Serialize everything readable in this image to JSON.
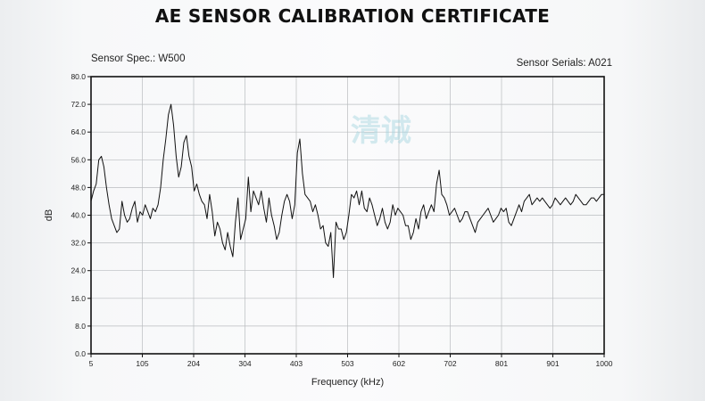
{
  "title": "AE SENSOR CALIBRATION CERTIFICATE",
  "sensor_spec": "Sensor Spec.: W500",
  "sensor_serials": "Sensor Serials: A021",
  "watermark": "清诚",
  "chart_data": {
    "type": "line",
    "title": "",
    "xlabel": "Frequency (kHz)",
    "ylabel": "dB",
    "xlim": [
      5,
      1000
    ],
    "ylim": [
      0,
      80
    ],
    "x_ticks": [
      "5",
      "105",
      "204",
      "304",
      "403",
      "503",
      "602",
      "702",
      "801",
      "901",
      "1000"
    ],
    "y_ticks": [
      "0.0",
      "8.0",
      "16.0",
      "24.0",
      "32.0",
      "40.0",
      "48.0",
      "56.0",
      "64.0",
      "72.0",
      "80.0"
    ],
    "grid": true,
    "line_color": "#111111",
    "series": [
      {
        "name": "",
        "x": [
          5,
          10,
          15,
          20,
          25,
          30,
          35,
          40,
          45,
          50,
          55,
          60,
          65,
          70,
          75,
          80,
          85,
          90,
          95,
          100,
          105,
          110,
          115,
          120,
          125,
          130,
          135,
          140,
          145,
          150,
          155,
          160,
          165,
          170,
          175,
          180,
          185,
          190,
          195,
          200,
          205,
          210,
          215,
          220,
          225,
          230,
          235,
          240,
          245,
          250,
          255,
          260,
          265,
          270,
          275,
          280,
          285,
          290,
          295,
          300,
          305,
          310,
          315,
          320,
          325,
          330,
          335,
          340,
          345,
          350,
          355,
          360,
          365,
          370,
          375,
          380,
          385,
          390,
          395,
          400,
          405,
          410,
          415,
          420,
          425,
          430,
          435,
          440,
          445,
          450,
          455,
          460,
          465,
          470,
          475,
          480,
          485,
          490,
          495,
          500,
          505,
          510,
          515,
          520,
          525,
          530,
          535,
          540,
          545,
          550,
          555,
          560,
          565,
          570,
          575,
          580,
          585,
          590,
          595,
          600,
          605,
          610,
          615,
          620,
          625,
          630,
          635,
          640,
          645,
          650,
          655,
          660,
          665,
          670,
          675,
          680,
          685,
          690,
          695,
          700,
          705,
          710,
          715,
          720,
          725,
          730,
          735,
          740,
          745,
          750,
          755,
          760,
          765,
          770,
          775,
          780,
          785,
          790,
          795,
          800,
          805,
          810,
          815,
          820,
          825,
          830,
          835,
          840,
          845,
          850,
          855,
          860,
          865,
          870,
          875,
          880,
          885,
          890,
          895,
          900,
          905,
          910,
          915,
          920,
          925,
          930,
          935,
          940,
          945,
          950,
          955,
          960,
          965,
          970,
          975,
          980,
          985,
          990,
          995,
          1000
        ],
        "values": [
          44,
          47,
          49,
          56,
          57,
          54,
          48,
          43,
          39,
          37,
          35,
          36,
          44,
          40,
          38,
          39,
          42,
          44,
          38,
          41,
          40,
          43,
          41,
          39,
          42,
          41,
          43,
          48,
          56,
          62,
          69,
          72,
          66,
          57,
          51,
          54,
          61,
          63,
          57,
          54,
          47,
          49,
          46,
          44,
          43,
          39,
          46,
          41,
          34,
          38,
          36,
          32,
          30,
          35,
          31,
          28,
          38,
          45,
          33,
          36,
          39,
          51,
          41,
          47,
          45,
          43,
          47,
          42,
          38,
          45,
          40,
          37,
          33,
          35,
          40,
          44,
          46,
          44,
          39,
          43,
          58,
          62,
          52,
          46,
          45,
          44,
          41,
          43,
          40,
          36,
          37,
          32,
          31,
          35,
          22,
          38,
          36,
          36,
          33,
          35,
          40,
          46,
          45,
          47,
          43,
          47,
          42,
          41,
          45,
          43,
          40,
          37,
          39,
          42,
          38,
          36,
          38,
          43,
          40,
          42,
          41,
          40,
          37,
          37,
          33,
          35,
          39,
          36,
          41,
          43,
          39,
          41,
          43,
          41,
          49,
          53,
          46,
          45,
          43,
          40,
          41,
          42,
          40,
          38,
          39,
          41,
          41,
          39,
          37,
          35,
          38,
          39,
          40,
          41,
          42,
          40,
          38,
          39,
          40,
          42,
          41,
          42,
          38,
          37,
          39,
          41,
          43,
          41,
          44,
          45,
          46,
          43,
          44,
          45,
          44,
          45,
          44,
          43,
          42,
          43,
          45,
          44,
          43,
          44,
          45,
          44,
          43,
          44,
          46,
          45,
          44,
          43,
          43,
          44,
          45,
          45,
          44,
          45,
          46,
          46
        ]
      }
    ]
  }
}
